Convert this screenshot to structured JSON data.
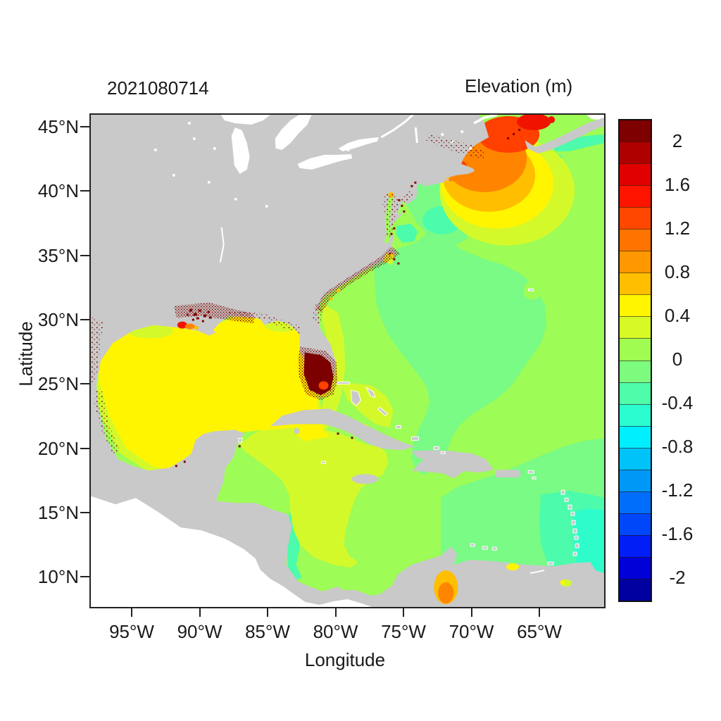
{
  "header": {
    "timestamp": "2021080714",
    "colorbar_title": "Elevation (m)"
  },
  "axes": {
    "x_label": "Longitude",
    "y_label": "Latitude",
    "x_ticks": [
      {
        "label": "95°W",
        "value": -95
      },
      {
        "label": "90°W",
        "value": -90
      },
      {
        "label": "85°W",
        "value": -85
      },
      {
        "label": "80°W",
        "value": -80
      },
      {
        "label": "75°W",
        "value": -75
      },
      {
        "label": "70°W",
        "value": -70
      },
      {
        "label": "65°W",
        "value": -65
      }
    ],
    "y_ticks": [
      {
        "label": "45°N",
        "value": 45
      },
      {
        "label": "40°N",
        "value": 40
      },
      {
        "label": "35°N",
        "value": 35
      },
      {
        "label": "30°N",
        "value": 30
      },
      {
        "label": "25°N",
        "value": 25
      },
      {
        "label": "20°N",
        "value": 20
      },
      {
        "label": "15°N",
        "value": 15
      },
      {
        "label": "10°N",
        "value": 10
      }
    ]
  },
  "colorbar": {
    "tick_labels": [
      "2",
      "1.6",
      "1.2",
      "0.8",
      "0.4",
      "0",
      "-0.4",
      "-0.8",
      "-1.2",
      "-1.6",
      "-2"
    ],
    "min": -2.2,
    "max": 2.2,
    "step": 0.2,
    "segment_colors_top_to_bottom": [
      "#7F0000",
      "#AF0000",
      "#E10000",
      "#FF1400",
      "#FF4700",
      "#FF7400",
      "#FF9700",
      "#FFBE00",
      "#FFF500",
      "#D7F926",
      "#A0FC50",
      "#7DFB7E",
      "#4FFCA9",
      "#2BFDD1",
      "#00EFFF",
      "#00C3FA",
      "#0098F6",
      "#006EFA",
      "#0047FA",
      "#001EF5",
      "#0000D8",
      "#0000A0"
    ]
  },
  "palette": {
    "land": "#C9C9C9",
    "white": "#FFFFFF",
    "lgreen": "#9DFC55",
    "mgreen": "#79FB85",
    "teal": "#4CFBAB",
    "turq": "#2EFCCB",
    "cyan": "#14E2F6",
    "ygreen": "#D4F92B",
    "yellow": "#FFF500",
    "amber": "#FFBE00",
    "orange": "#FF8400",
    "ored": "#FF4000",
    "red": "#F01400",
    "maroon": "#7D0000"
  },
  "chart_data": {
    "type": "heatmap",
    "title": "2021080714",
    "colorbar_title": "Elevation (m)",
    "xlabel": "Longitude",
    "ylabel": "Latitude",
    "x_range_deg_lon": [
      -98.1,
      -60.4
    ],
    "y_range_deg_lat": [
      8.0,
      46.0
    ],
    "units": "m",
    "levels": {
      "min": -2.2,
      "max": 2.2,
      "step": 0.2
    },
    "legend_position": "right",
    "grid": false,
    "regions": [
      {
        "region": "Gulf of Mexico",
        "approx_elevation_m": 0.5
      },
      {
        "region": "Western Caribbean Sea",
        "approx_elevation_m": 0.3
      },
      {
        "region": "Open Atlantic (east of Florida, around Bahamas)",
        "approx_elevation_m": 0.1
      },
      {
        "region": "Central Atlantic patch (off Carolinas to Bermuda)",
        "approx_elevation_m": -0.1
      },
      {
        "region": "Gulf of Maine",
        "approx_elevation_m": 1.0
      },
      {
        "region": "Bay of Fundy",
        "approx_elevation_m": 1.5
      },
      {
        "region": "Minas Basin at head of Bay of Fundy",
        "approx_elevation_m": 1.9
      },
      {
        "region": "Southwest Florida coastal cells (speckled)",
        "approx_elevation_m": 2.2
      },
      {
        "region": "Louisiana coastal marsh cells (speckled)",
        "approx_elevation_m": 2.2
      },
      {
        "region": "US East Coast estuary cells (speckled)",
        "approx_elevation_m": 2.2
      },
      {
        "region": "Eastern Caribbean near Lesser Antilles",
        "approx_elevation_m": -0.3
      },
      {
        "region": "Shelf near Trinidad / Orinoco",
        "approx_elevation_m": -0.7
      },
      {
        "region": "Lake Maracaibo",
        "approx_elevation_m": 0.8
      },
      {
        "region": "Venezuela coast spot near Caracas",
        "approx_elevation_m": 0.5
      }
    ]
  }
}
